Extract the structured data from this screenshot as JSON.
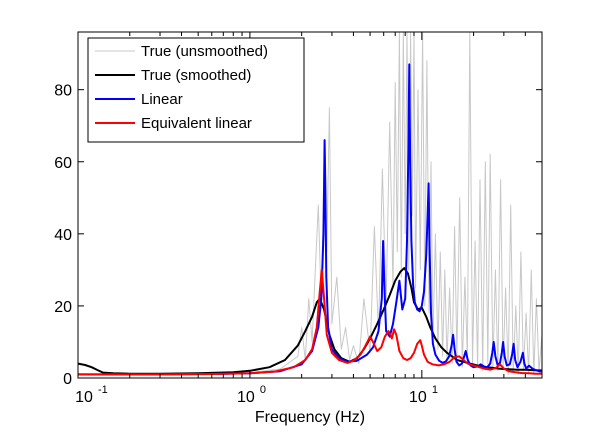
{
  "chart_data": {
    "type": "line",
    "title": "",
    "xlabel": "Frequency (Hz)",
    "ylabel": "",
    "xscale": "log",
    "xlim": [
      0.1,
      50
    ],
    "ylim": [
      0,
      96
    ],
    "grid": false,
    "legend_position": "top-left",
    "x_ticks": [
      {
        "value": 0.1,
        "base": "10",
        "exp": "-1"
      },
      {
        "value": 1,
        "base": "10",
        "exp": "0"
      },
      {
        "value": 10,
        "base": "10",
        "exp": "1"
      }
    ],
    "y_ticks": [
      {
        "value": 0,
        "label": "0"
      },
      {
        "value": 20,
        "label": "20"
      },
      {
        "value": 40,
        "label": "40"
      },
      {
        "value": 60,
        "label": "60"
      },
      {
        "value": 80,
        "label": "80"
      }
    ],
    "series": [
      {
        "name": "True (unsmoothed)",
        "color": "#c8c8c8",
        "width": 1,
        "x": [
          0.1,
          0.3,
          0.6,
          1.0,
          1.5,
          1.9,
          2.0,
          2.1,
          2.2,
          2.3,
          2.4,
          2.5,
          2.6,
          2.7,
          2.8,
          2.9,
          3.0,
          3.2,
          3.4,
          3.6,
          3.8,
          4.0,
          4.3,
          4.6,
          5.0,
          5.3,
          5.6,
          5.9,
          6.2,
          6.5,
          6.8,
          7.0,
          7.2,
          7.4,
          7.6,
          7.8,
          8.0,
          8.2,
          8.4,
          8.6,
          8.8,
          9.0,
          9.2,
          9.5,
          9.8,
          10.1,
          10.4,
          10.7,
          11.0,
          11.3,
          11.6,
          12.0,
          12.4,
          12.8,
          13.2,
          13.6,
          14.0,
          14.5,
          15.0,
          15.5,
          16.0,
          16.6,
          17.2,
          17.8,
          18.4,
          19.0,
          19.7,
          20.4,
          21.1,
          21.8,
          22.6,
          23.4,
          24.2,
          25.0,
          25.9,
          26.8,
          27.7,
          28.7,
          29.7,
          30.7,
          31.8,
          32.9,
          34.0,
          35.2,
          36.4,
          37.7,
          39.0,
          40.4,
          41.8,
          43.3,
          44.8,
          46.4,
          48.0,
          50.0
        ],
        "y": [
          1.0,
          1.0,
          1.2,
          1.5,
          2.5,
          6,
          14,
          5,
          22,
          10,
          30,
          48,
          20,
          60,
          35,
          75,
          15,
          28,
          8,
          14,
          5,
          9,
          4,
          22,
          7,
          42,
          12,
          58,
          20,
          71,
          25,
          82,
          35,
          96,
          28,
          96,
          40,
          96,
          30,
          96,
          45,
          96,
          25,
          80,
          30,
          96,
          20,
          88,
          18,
          60,
          10,
          40,
          8,
          35,
          6,
          30,
          5,
          25,
          4,
          42,
          6,
          50,
          3,
          28,
          5,
          96,
          4,
          38,
          3,
          55,
          2,
          60,
          4,
          62,
          3,
          30,
          2,
          55,
          3,
          25,
          1,
          48,
          2,
          20,
          1,
          35,
          2,
          18,
          1,
          30,
          1,
          22,
          2,
          12
        ]
      },
      {
        "name": "True (smoothed)",
        "color": "#000000",
        "width": 2,
        "x": [
          0.1,
          0.11,
          0.12,
          0.13,
          0.14,
          0.16,
          0.2,
          0.3,
          0.5,
          0.8,
          1.0,
          1.3,
          1.6,
          1.9,
          2.1,
          2.3,
          2.45,
          2.55,
          2.7,
          2.9,
          3.1,
          3.4,
          3.8,
          4.2,
          4.6,
          5.0,
          5.5,
          6.0,
          6.5,
          7.0,
          7.5,
          7.9,
          8.3,
          8.7,
          9.0,
          9.5,
          10.0,
          10.6,
          11.2,
          12.0,
          13.0,
          14.0,
          15.0,
          16.0,
          17.5,
          19.0,
          20.5,
          22.0,
          24.0,
          26.0,
          28.0,
          30.0,
          33.0,
          36.0,
          40.0,
          44.0,
          48.0,
          50.0
        ],
        "y": [
          4.0,
          3.6,
          3.0,
          2.2,
          1.5,
          1.3,
          1.2,
          1.2,
          1.3,
          1.6,
          2.0,
          3.0,
          5.0,
          9.0,
          13.0,
          17.0,
          21.0,
          22.0,
          19.0,
          12.0,
          8.0,
          5.5,
          4.5,
          5.5,
          8.0,
          11.0,
          15.0,
          19.0,
          23.0,
          27.0,
          29.5,
          30.5,
          29.0,
          25.0,
          21.0,
          19.0,
          19.5,
          17.0,
          14.0,
          11.0,
          8.5,
          7.0,
          6.0,
          5.0,
          4.5,
          4.0,
          3.6,
          3.2,
          3.0,
          2.8,
          2.6,
          2.5,
          2.4,
          2.3,
          2.3,
          2.2,
          2.1,
          2.1
        ]
      },
      {
        "name": "Linear",
        "color": "#0000ff",
        "width": 2,
        "x": [
          0.1,
          0.3,
          0.6,
          1.0,
          1.5,
          2.0,
          2.3,
          2.5,
          2.6,
          2.68,
          2.72,
          2.75,
          2.78,
          2.85,
          3.0,
          3.3,
          3.7,
          4.2,
          4.8,
          5.2,
          5.6,
          5.85,
          5.95,
          6.05,
          6.2,
          6.5,
          6.8,
          7.1,
          7.4,
          7.7,
          8.0,
          8.2,
          8.35,
          8.45,
          8.55,
          8.7,
          8.9,
          9.1,
          9.4,
          9.7,
          10.0,
          10.3,
          10.6,
          10.8,
          10.95,
          11.1,
          11.3,
          11.6,
          12.0,
          12.6,
          13.2,
          13.8,
          14.4,
          14.9,
          15.2,
          15.5,
          15.9,
          16.5,
          17.1,
          17.6,
          18.0,
          18.5,
          19.2,
          20.0,
          21.0,
          22.0,
          23.0,
          24.0,
          25.0,
          25.7,
          26.2,
          26.8,
          27.6,
          28.5,
          29.2,
          29.7,
          30.3,
          31.2,
          32.5,
          33.5,
          34.2,
          34.9,
          36.0,
          37.5,
          38.7,
          39.5,
          40.5,
          42.0,
          44.0,
          46.0,
          48.0,
          50.0
        ],
        "y": [
          1.0,
          1.0,
          1.1,
          1.3,
          1.9,
          3.8,
          7.5,
          14.0,
          22.0,
          40.0,
          66.0,
          52.0,
          28.0,
          14.0,
          8.0,
          5.5,
          4.5,
          4.8,
          6.5,
          8.5,
          13.0,
          22.0,
          38.0,
          26.0,
          13.0,
          11.5,
          15.0,
          21.0,
          27.0,
          19.0,
          22.0,
          38.0,
          64.0,
          87.0,
          62.0,
          38.0,
          26.0,
          21.0,
          19.0,
          18.5,
          20.0,
          24.0,
          34.0,
          45.0,
          54.0,
          36.0,
          18.0,
          9.5,
          6.5,
          4.8,
          4.2,
          4.6,
          6.0,
          9.0,
          12.0,
          8.0,
          4.5,
          3.5,
          4.0,
          5.8,
          7.5,
          5.0,
          3.5,
          3.0,
          3.2,
          3.8,
          3.2,
          3.0,
          4.0,
          7.0,
          10.0,
          6.0,
          3.6,
          4.2,
          7.0,
          10.0,
          6.0,
          3.5,
          3.8,
          6.5,
          9.5,
          5.0,
          3.0,
          4.5,
          7.0,
          4.0,
          2.6,
          3.4,
          2.6,
          2.2,
          1.9,
          1.8
        ]
      },
      {
        "name": "Equivalent linear",
        "color": "#ff0000",
        "width": 2,
        "x": [
          0.1,
          0.3,
          0.6,
          1.0,
          1.4,
          1.8,
          2.1,
          2.3,
          2.45,
          2.55,
          2.62,
          2.7,
          2.8,
          3.0,
          3.3,
          3.7,
          4.0,
          4.4,
          4.7,
          5.0,
          5.2,
          5.5,
          5.8,
          6.1,
          6.4,
          6.7,
          6.9,
          7.1,
          7.4,
          7.8,
          8.2,
          8.6,
          9.0,
          9.4,
          9.8,
          10.0,
          10.3,
          10.8,
          11.5,
          12.5,
          13.5,
          14.5,
          15.5,
          16.5,
          17.5,
          18.5,
          19.5,
          21.0,
          23.0,
          25.0,
          27.0,
          28.5,
          30.0,
          32.0,
          35.0,
          38.0,
          42.0,
          46.0,
          50.0
        ],
        "y": [
          1.0,
          1.0,
          1.1,
          1.3,
          1.8,
          3.0,
          5.0,
          8.0,
          14.0,
          24.0,
          30.0,
          22.0,
          12.0,
          7.0,
          5.0,
          4.2,
          4.8,
          6.5,
          9.0,
          11.5,
          10.0,
          7.5,
          8.5,
          11.5,
          13.0,
          11.0,
          13.5,
          12.0,
          7.5,
          5.5,
          5.0,
          5.5,
          7.0,
          9.5,
          10.5,
          9.0,
          6.5,
          4.5,
          3.8,
          3.5,
          3.8,
          4.5,
          5.8,
          6.0,
          5.0,
          4.0,
          3.6,
          3.2,
          2.6,
          2.3,
          2.8,
          3.8,
          2.6,
          1.9,
          1.6,
          1.4,
          1.3,
          1.2,
          1.2
        ]
      }
    ]
  }
}
